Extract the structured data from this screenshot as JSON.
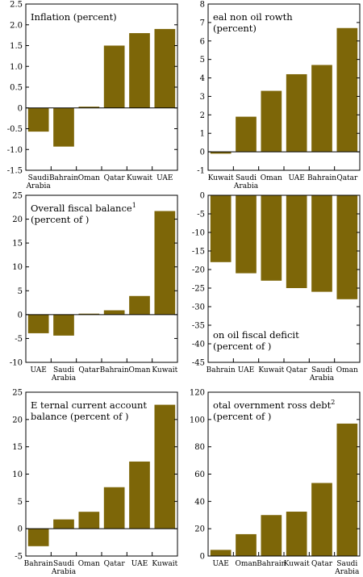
{
  "chart_data": [
    {
      "type": "bar",
      "title_lines": [
        "Inflation (percent)"
      ],
      "title_sup": "",
      "categories": [
        [
          "Saudi",
          "Arabia"
        ],
        [
          "Bahrain"
        ],
        [
          "Oman"
        ],
        [
          "Qatar"
        ],
        [
          "Kuwait"
        ],
        [
          "UAE"
        ]
      ],
      "values": [
        -0.57,
        -0.93,
        0.03,
        1.5,
        1.8,
        1.9
      ],
      "ylim": [
        -1.5,
        2.5
      ],
      "yticks": [
        "2.5",
        "2.0",
        "1.5",
        "1.0",
        "0.5",
        "0",
        "-0.5",
        "-1.0",
        "-1.5"
      ],
      "ytick_values": [
        2.5,
        2.0,
        1.5,
        1.0,
        0.5,
        0,
        -0.5,
        -1.0,
        -1.5
      ],
      "color": "#7d6608"
    },
    {
      "type": "bar",
      "title_lines": [
        "eal non oil     rowth",
        "(percent)"
      ],
      "title_sup": "",
      "categories": [
        [
          "Kuwait"
        ],
        [
          "Saudi",
          "Arabia"
        ],
        [
          "Oman"
        ],
        [
          "UAE"
        ],
        [
          "Bahrain"
        ],
        [
          "Qatar"
        ]
      ],
      "values": [
        -0.1,
        1.9,
        3.3,
        4.2,
        4.7,
        6.7
      ],
      "ylim": [
        -1,
        8
      ],
      "yticks": [
        "8",
        "7",
        "6",
        "5",
        "4",
        "3",
        "2",
        "1",
        "0",
        "-1"
      ],
      "ytick_values": [
        8,
        7,
        6,
        5,
        4,
        3,
        2,
        1,
        0,
        -1
      ],
      "color": "#7d6608"
    },
    {
      "type": "bar",
      "title_lines": [
        "Overall fiscal balance",
        "(percent of    )"
      ],
      "title_sup": "1",
      "categories": [
        [
          "UAE"
        ],
        [
          "Saudi",
          "Arabia"
        ],
        [
          "Qatar"
        ],
        [
          "Bahrain"
        ],
        [
          "Oman"
        ],
        [
          "Kuwait"
        ]
      ],
      "values": [
        -3.9,
        -4.4,
        0.2,
        0.9,
        3.9,
        21.7
      ],
      "ylim": [
        -10,
        25
      ],
      "yticks": [
        "25",
        "20",
        "15",
        "10",
        "5",
        "0",
        "-5",
        "-10"
      ],
      "ytick_values": [
        25,
        20,
        15,
        10,
        5,
        0,
        -5,
        -10
      ],
      "color": "#7d6608"
    },
    {
      "type": "bar",
      "title_lines": [
        "on oil fiscal deficit",
        "(percent of    )"
      ],
      "title_sup": "",
      "title_position": "bottom",
      "categories": [
        [
          "Bahrain"
        ],
        [
          "UAE"
        ],
        [
          "Kuwait"
        ],
        [
          "Qatar"
        ],
        [
          "Saudi",
          "Arabia"
        ],
        [
          "Oman"
        ]
      ],
      "values": [
        -18,
        -21,
        -23,
        -25,
        -26,
        -28
      ],
      "ylim": [
        -45,
        0
      ],
      "yticks": [
        "0",
        "-5",
        "-10",
        "-15",
        "-20",
        "-25",
        "-30",
        "-35",
        "-40",
        "-45"
      ],
      "ytick_values": [
        0,
        -5,
        -10,
        -15,
        -20,
        -25,
        -30,
        -35,
        -40,
        -45
      ],
      "color": "#7d6608"
    },
    {
      "type": "bar",
      "title_lines": [
        "E ternal current account",
        "balance (percent of    )"
      ],
      "title_sup": "",
      "categories": [
        [
          "Bahrain"
        ],
        [
          "Saudi",
          "Arabia"
        ],
        [
          "Oman"
        ],
        [
          "Qatar"
        ],
        [
          "UAE"
        ],
        [
          "Kuwait"
        ]
      ],
      "values": [
        -3.2,
        1.7,
        3.1,
        7.6,
        12.3,
        22.7
      ],
      "ylim": [
        -5,
        25
      ],
      "yticks": [
        "25",
        "20",
        "15",
        "10",
        "5",
        "0",
        "-5"
      ],
      "ytick_values": [
        25,
        20,
        15,
        10,
        5,
        0,
        -5
      ],
      "color": "#7d6608"
    },
    {
      "type": "bar",
      "title_lines": [
        "otal   overnment   ross debt",
        "(percent of    )"
      ],
      "title_sup": "2",
      "categories": [
        [
          "UAE"
        ],
        [
          "Oman"
        ],
        [
          "Bahrain"
        ],
        [
          "Kuwait"
        ],
        [
          "Qatar"
        ],
        [
          "Saudi",
          "Arabia"
        ]
      ],
      "values": [
        4.5,
        16,
        30,
        32.5,
        53.5,
        97
      ],
      "ylim": [
        0,
        120
      ],
      "yticks": [
        "120",
        "100",
        "80",
        "60",
        "40",
        "20",
        "0"
      ],
      "ytick_values": [
        120,
        100,
        80,
        60,
        40,
        20,
        0
      ],
      "color": "#7d6608"
    }
  ]
}
